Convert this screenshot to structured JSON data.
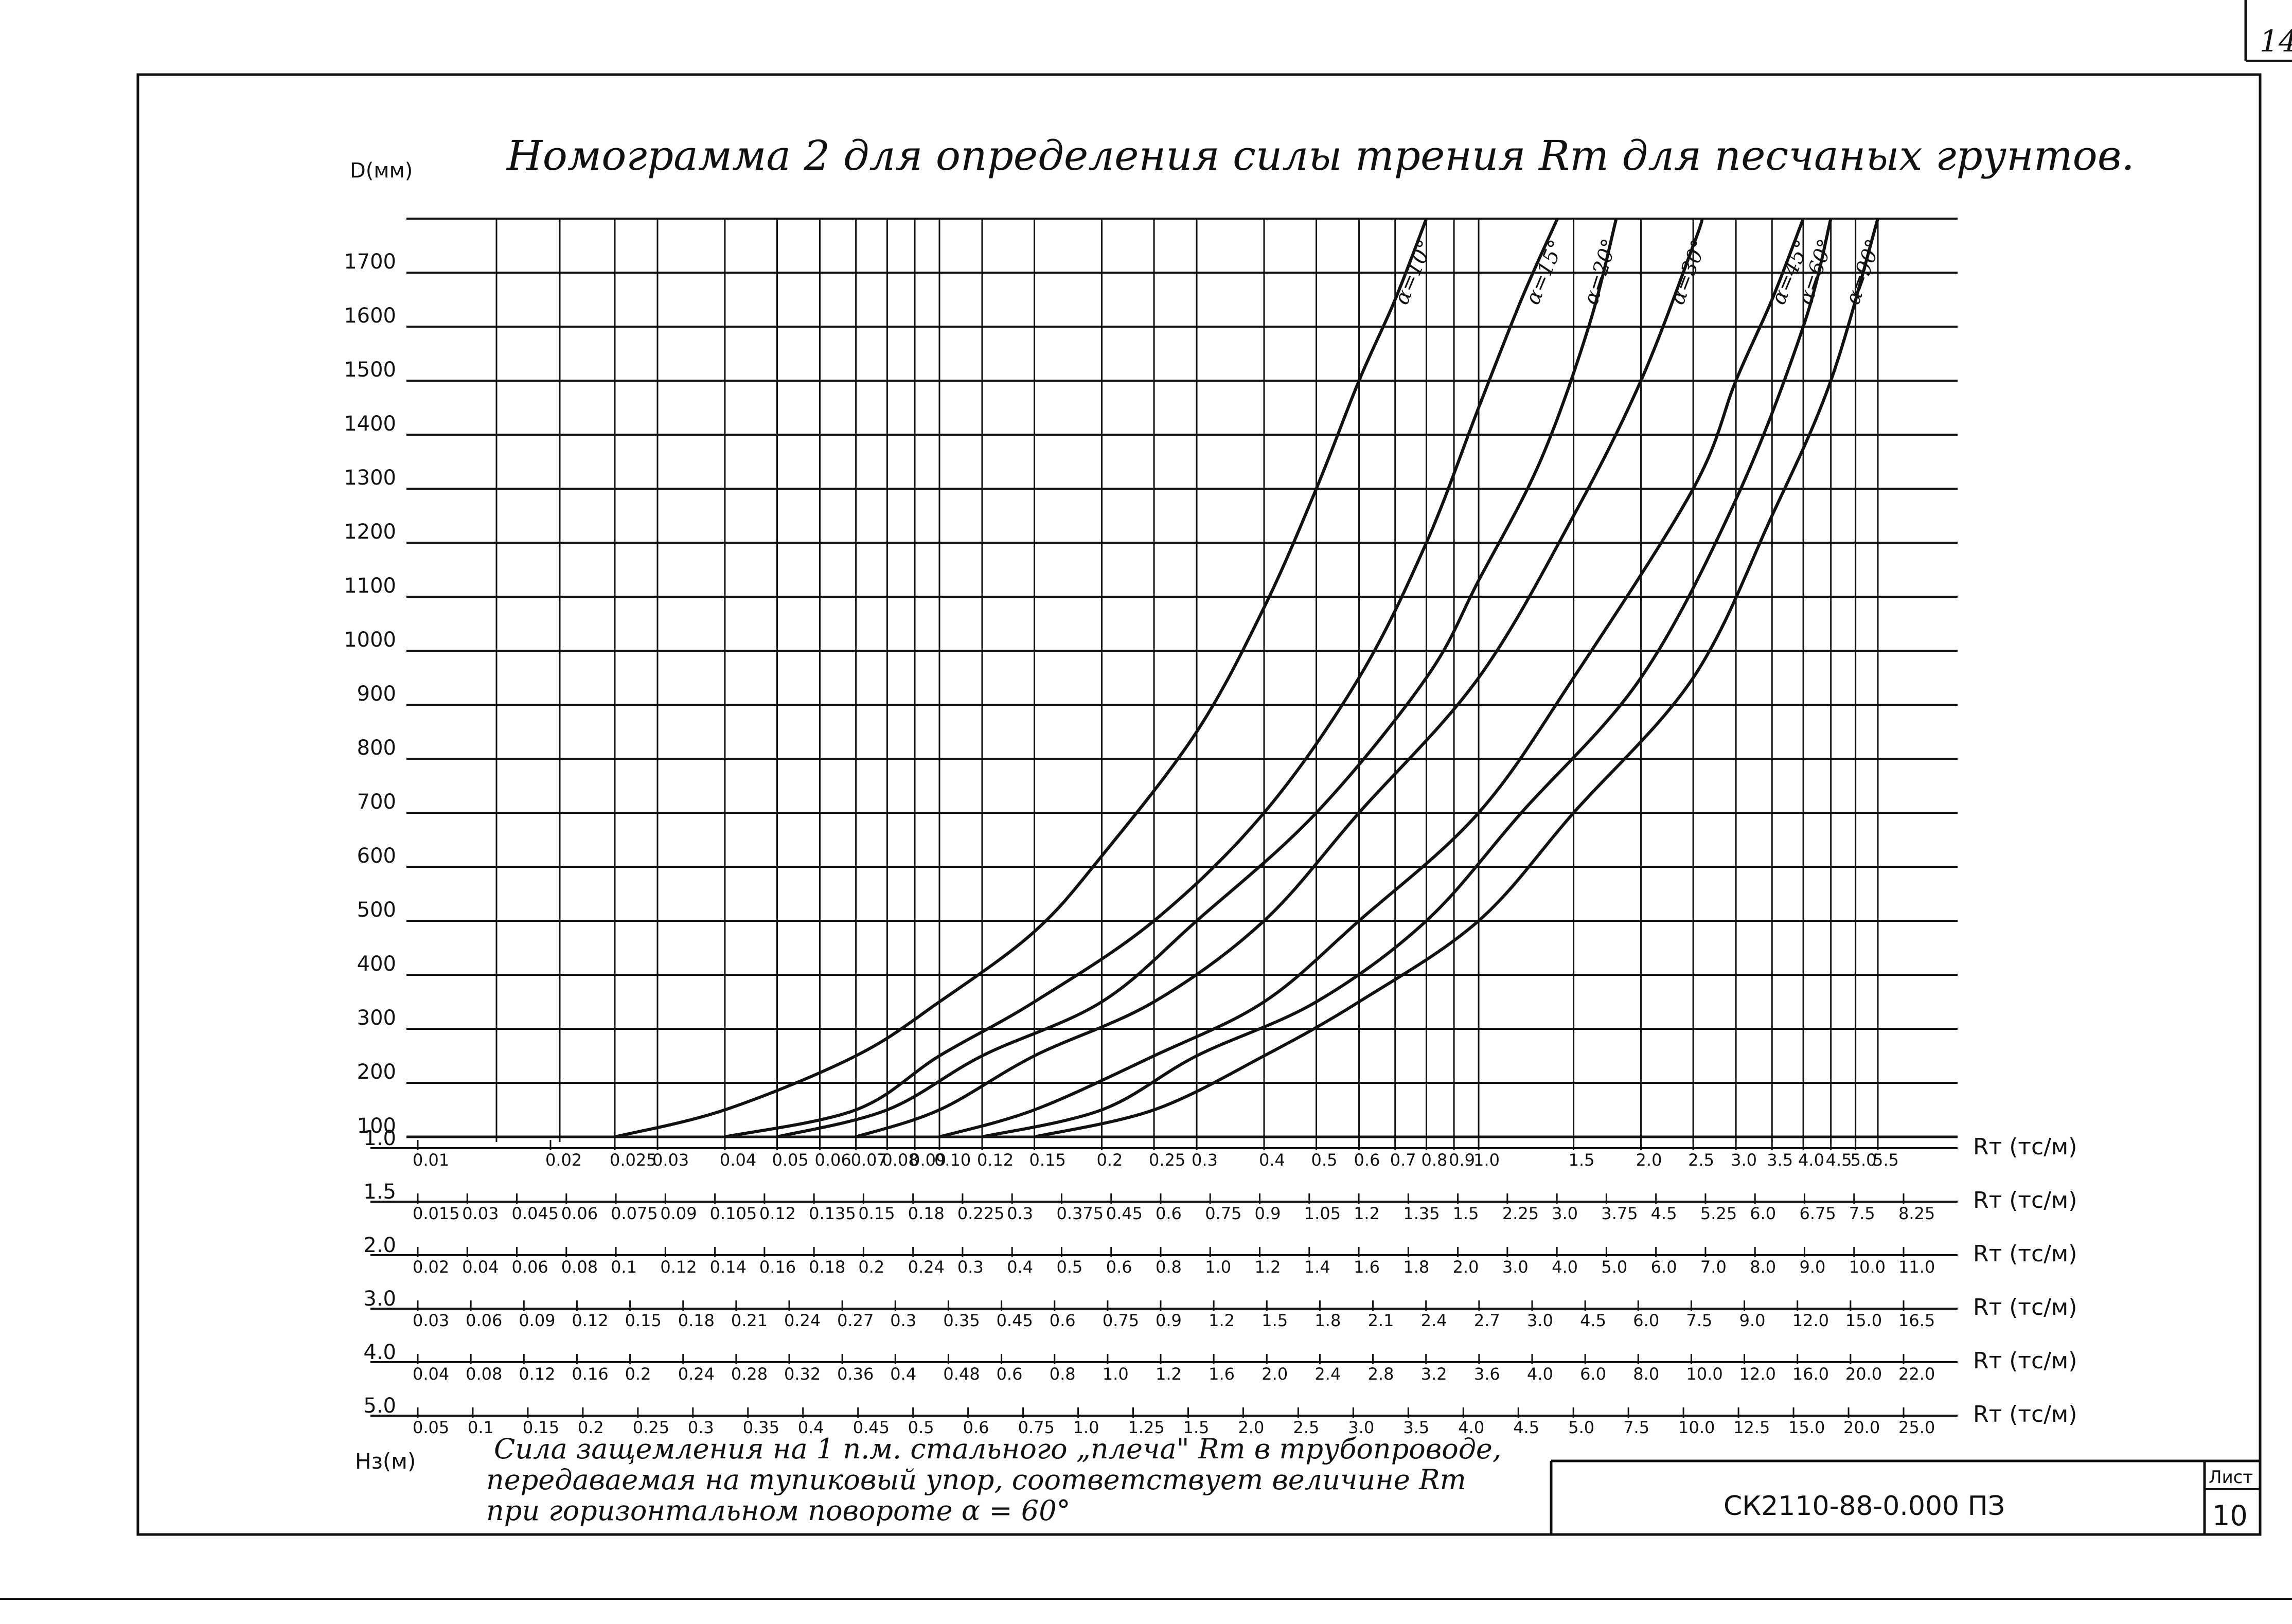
{
  "sheet": {
    "corner_number": "14",
    "title": "Номограмма 2 для определения силы трения Rт для песчаных грунтов.",
    "note_lines": [
      "Сила защемления на 1 п.м. стального „плеча\" Rт в трубопроводе,",
      "передаваемая на тупиковый упор, соответствует величине Rт",
      "при горизонтальном повороте α = 60°"
    ],
    "stamp": {
      "designation": "СК2110-88-0.000 ПЗ",
      "sheet_label": "Лист",
      "sheet_number": "10"
    }
  },
  "chart_data": {
    "type": "line",
    "title": "Номограмма 2 для определения силы трения Rт для песчаных грунтов.",
    "ylabel": "D(мм)",
    "hs_label": "Hз(м)",
    "y_ticks": [
      "1700",
      "1600",
      "1500",
      "1400",
      "1300",
      "1200",
      "1100",
      "1000",
      "900",
      "800",
      "700",
      "600",
      "500",
      "400",
      "300",
      "200",
      "100"
    ],
    "grid": true,
    "x_positions": [
      0.01,
      0.02,
      0.025,
      0.03,
      0.04,
      0.05,
      0.06,
      0.07,
      0.08,
      0.09,
      0.1,
      0.12,
      0.15,
      0.2,
      0.25,
      0.3,
      0.4,
      0.5,
      0.6,
      0.7,
      0.8,
      0.9,
      1.0,
      1.5,
      2.0,
      2.5,
      3.0,
      3.5,
      4.0,
      4.5,
      5.0,
      5.5
    ],
    "scales": [
      {
        "hs": "1.0",
        "unit": "Rт (тс/м)",
        "labels": [
          "0.01",
          "0.02",
          "0.025",
          "0.03",
          "0.04",
          "0.05",
          "0.06",
          "0.07",
          "0.08",
          "0.09",
          "0.10",
          "0.12",
          "0.15",
          "0.2",
          "0.25",
          "0.3",
          "0.4",
          "0.5",
          "0.6",
          "0.7",
          "0.8",
          "0.9",
          "1.0",
          "1.5",
          "2.0",
          "2.5",
          "3.0",
          "3.5",
          "4.0",
          "4.5",
          "5.0",
          "5.5"
        ]
      },
      {
        "hs": "1.5",
        "unit": "Rт (тс/м)",
        "labels": [
          "0.015",
          "0.03",
          "0.045",
          "0.06",
          "0.075",
          "0.09",
          "0.105",
          "0.12",
          "0.135",
          "0.15",
          "0.18",
          "0.225",
          "0.3",
          "0.375",
          "0.45",
          "0.6",
          "0.75",
          "0.9",
          "1.05",
          "1.2",
          "1.35",
          "1.5",
          "2.25",
          "3.0",
          "3.75",
          "4.5",
          "5.25",
          "6.0",
          "6.75",
          "7.5",
          "8.25"
        ]
      },
      {
        "hs": "2.0",
        "unit": "Rт (тс/м)",
        "labels": [
          "0.02",
          "0.04",
          "0.06",
          "0.08",
          "0.1",
          "0.12",
          "0.14",
          "0.16",
          "0.18",
          "0.2",
          "0.24",
          "0.3",
          "0.4",
          "0.5",
          "0.6",
          "0.8",
          "1.0",
          "1.2",
          "1.4",
          "1.6",
          "1.8",
          "2.0",
          "3.0",
          "4.0",
          "5.0",
          "6.0",
          "7.0",
          "8.0",
          "9.0",
          "10.0",
          "11.0"
        ]
      },
      {
        "hs": "3.0",
        "unit": "Rт (тс/м)",
        "labels": [
          "0.03",
          "0.06",
          "0.09",
          "0.12",
          "0.15",
          "0.18",
          "0.21",
          "0.24",
          "0.27",
          "0.3",
          "0.35",
          "0.45",
          "0.6",
          "0.75",
          "0.9",
          "1.2",
          "1.5",
          "1.8",
          "2.1",
          "2.4",
          "2.7",
          "3.0",
          "4.5",
          "6.0",
          "7.5",
          "9.0",
          "12.0",
          "15.0",
          "16.5"
        ]
      },
      {
        "hs": "4.0",
        "unit": "Rт (тс/м)",
        "labels": [
          "0.04",
          "0.08",
          "0.12",
          "0.16",
          "0.2",
          "0.24",
          "0.28",
          "0.32",
          "0.36",
          "0.4",
          "0.48",
          "0.6",
          "0.8",
          "1.0",
          "1.2",
          "1.6",
          "2.0",
          "2.4",
          "2.8",
          "3.2",
          "3.6",
          "4.0",
          "6.0",
          "8.0",
          "10.0",
          "12.0",
          "16.0",
          "20.0",
          "22.0"
        ]
      },
      {
        "hs": "5.0",
        "unit": "Rт (тс/м)",
        "labels": [
          "0.05",
          "0.1",
          "0.15",
          "0.2",
          "0.25",
          "0.3",
          "0.35",
          "0.4",
          "0.45",
          "0.5",
          "0.6",
          "0.75",
          "1.0",
          "1.25",
          "1.5",
          "2.0",
          "2.5",
          "3.0",
          "3.5",
          "4.0",
          "4.5",
          "5.0",
          "7.5",
          "10.0",
          "12.5",
          "15.0",
          "20.0",
          "25.0"
        ]
      }
    ],
    "series": [
      {
        "name": "α=10°",
        "points": [
          [
            0.025,
            100
          ],
          [
            0.04,
            150
          ],
          [
            0.07,
            250
          ],
          [
            0.1,
            350
          ],
          [
            0.15,
            480
          ],
          [
            0.2,
            620
          ],
          [
            0.3,
            850
          ],
          [
            0.4,
            1080
          ],
          [
            0.5,
            1300
          ],
          [
            0.6,
            1500
          ],
          [
            0.7,
            1650
          ],
          [
            0.8,
            1800
          ]
        ]
      },
      {
        "name": "α=15°",
        "points": [
          [
            0.04,
            100
          ],
          [
            0.07,
            150
          ],
          [
            0.1,
            250
          ],
          [
            0.15,
            350
          ],
          [
            0.25,
            500
          ],
          [
            0.4,
            700
          ],
          [
            0.6,
            950
          ],
          [
            0.8,
            1200
          ],
          [
            1.0,
            1450
          ],
          [
            1.2,
            1650
          ],
          [
            1.4,
            1800
          ]
        ]
      },
      {
        "name": "α=20°",
        "points": [
          [
            0.05,
            100
          ],
          [
            0.08,
            150
          ],
          [
            0.12,
            250
          ],
          [
            0.2,
            350
          ],
          [
            0.3,
            500
          ],
          [
            0.5,
            700
          ],
          [
            0.8,
            950
          ],
          [
            1.0,
            1130
          ],
          [
            1.3,
            1350
          ],
          [
            1.6,
            1600
          ],
          [
            1.8,
            1800
          ]
        ]
      },
      {
        "name": "α=30°",
        "points": [
          [
            0.07,
            100
          ],
          [
            0.1,
            150
          ],
          [
            0.15,
            250
          ],
          [
            0.25,
            350
          ],
          [
            0.4,
            500
          ],
          [
            0.6,
            700
          ],
          [
            1.0,
            950
          ],
          [
            1.5,
            1250
          ],
          [
            2.0,
            1500
          ],
          [
            2.5,
            1750
          ],
          [
            2.6,
            1800
          ]
        ]
      },
      {
        "name": "α=45°",
        "points": [
          [
            0.1,
            100
          ],
          [
            0.15,
            150
          ],
          [
            0.25,
            250
          ],
          [
            0.4,
            350
          ],
          [
            0.6,
            500
          ],
          [
            1.0,
            700
          ],
          [
            1.5,
            950
          ],
          [
            2.5,
            1300
          ],
          [
            3.0,
            1500
          ],
          [
            3.5,
            1650
          ],
          [
            4.0,
            1800
          ]
        ]
      },
      {
        "name": "α=60°",
        "points": [
          [
            0.12,
            100
          ],
          [
            0.2,
            150
          ],
          [
            0.3,
            250
          ],
          [
            0.5,
            350
          ],
          [
            0.8,
            500
          ],
          [
            1.2,
            700
          ],
          [
            2.0,
            950
          ],
          [
            3.0,
            1280
          ],
          [
            4.0,
            1600
          ],
          [
            4.5,
            1800
          ]
        ]
      },
      {
        "name": "α=90°",
        "points": [
          [
            0.15,
            100
          ],
          [
            0.25,
            150
          ],
          [
            0.4,
            250
          ],
          [
            0.6,
            350
          ],
          [
            1.0,
            500
          ],
          [
            1.5,
            700
          ],
          [
            2.5,
            950
          ],
          [
            3.5,
            1250
          ],
          [
            4.5,
            1500
          ],
          [
            5.5,
            1800
          ]
        ]
      }
    ]
  }
}
